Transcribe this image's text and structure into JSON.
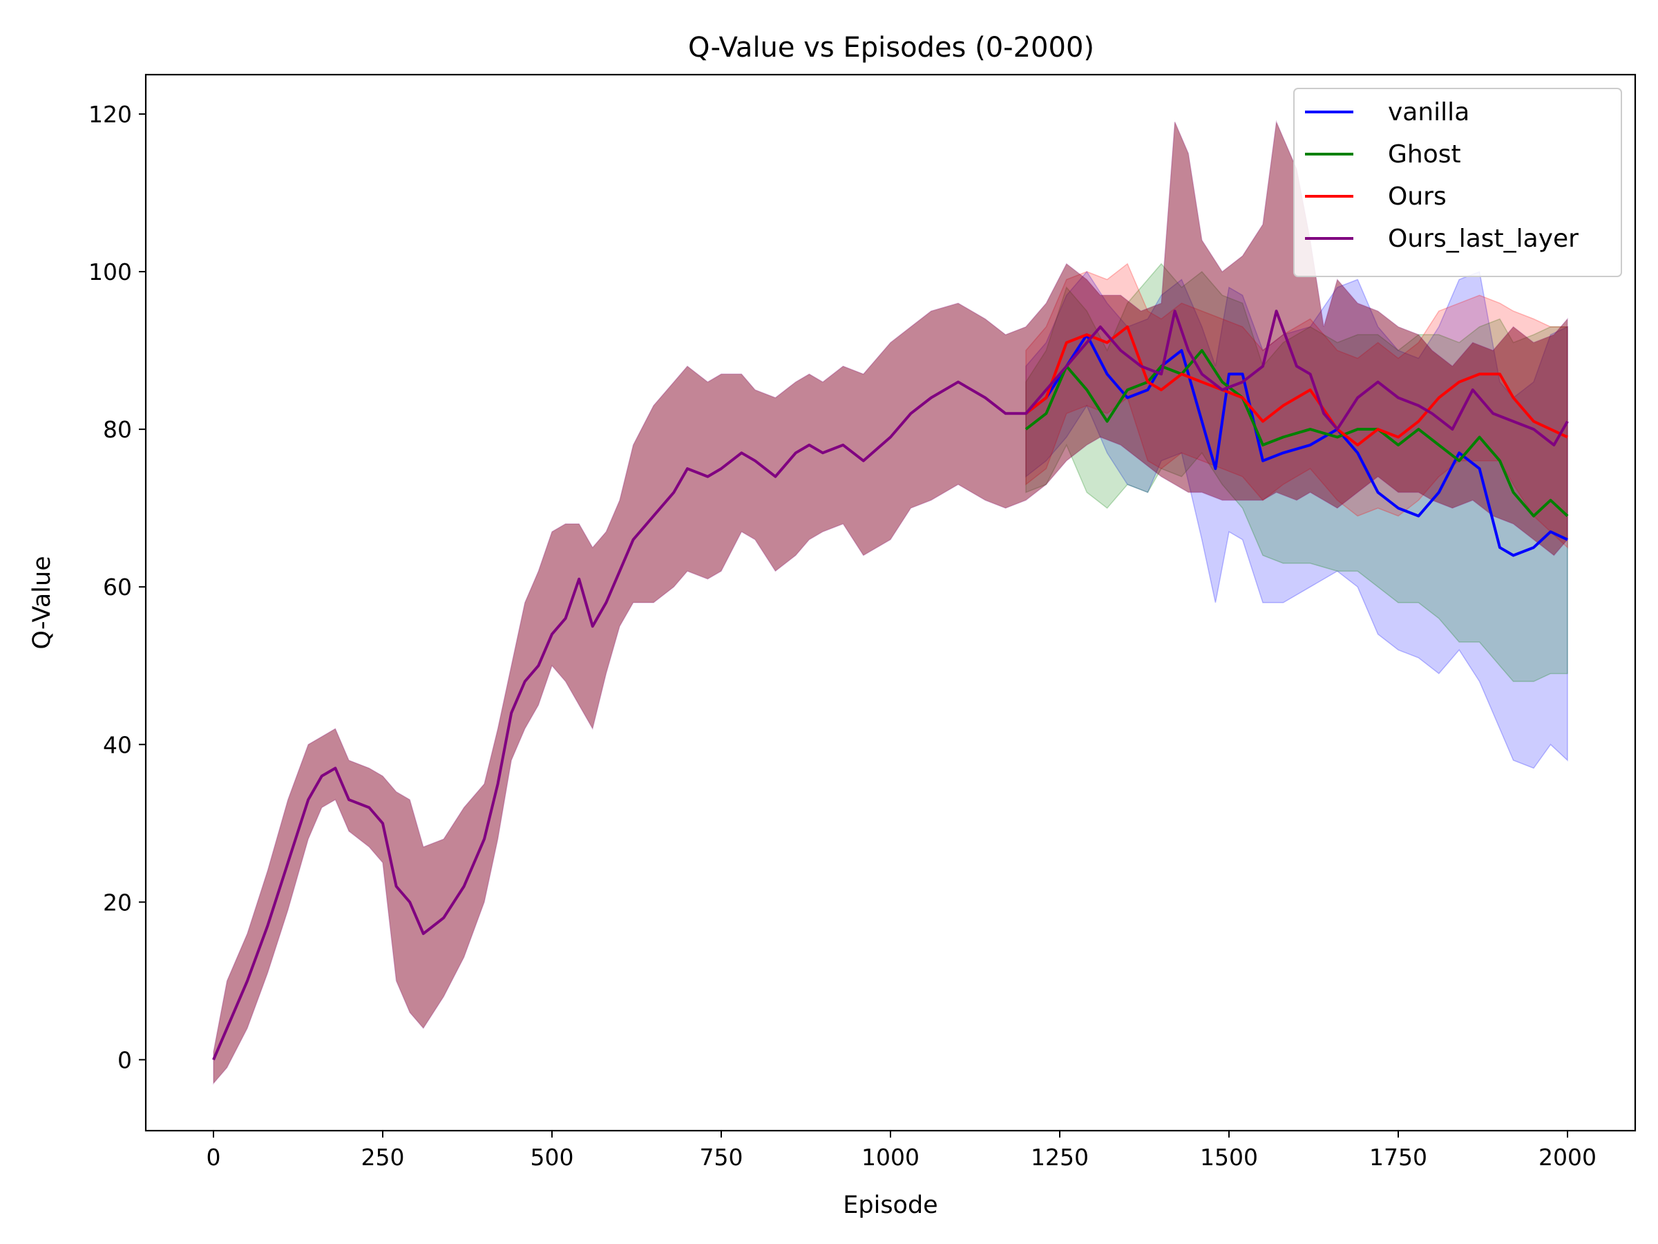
{
  "chart_data": {
    "type": "line",
    "title": "Q-Value vs Episodes (0-2000)",
    "xlabel": "Episode",
    "ylabel": "Q-Value",
    "xlim": [
      -100,
      2100
    ],
    "ylim": [
      -9,
      125
    ],
    "xticks": [
      0,
      250,
      500,
      750,
      1000,
      1250,
      1500,
      1750,
      2000
    ],
    "yticks": [
      0,
      20,
      40,
      60,
      80,
      100,
      120
    ],
    "grid": false,
    "legend_position": "top-right",
    "series": [
      {
        "name": "vanilla",
        "color": "#0000ff",
        "x": [
          1200,
          1230,
          1260,
          1290,
          1320,
          1350,
          1380,
          1400,
          1430,
          1460,
          1480,
          1500,
          1520,
          1550,
          1580,
          1620,
          1660,
          1690,
          1720,
          1750,
          1780,
          1810,
          1840,
          1870,
          1900,
          1920,
          1950,
          1975,
          2000
        ],
        "y": [
          82,
          84,
          88,
          92,
          87,
          84,
          85,
          88,
          90,
          81,
          75,
          87,
          87,
          76,
          77,
          78,
          80,
          77,
          72,
          70,
          69,
          72,
          77,
          75,
          65,
          64,
          65,
          67,
          66
        ],
        "upper": [
          88,
          91,
          97,
          100,
          96,
          93,
          94,
          97,
          99,
          93,
          88,
          98,
          97,
          90,
          92,
          93,
          98,
          99,
          93,
          90,
          89,
          93,
          99,
          100,
          86,
          84,
          86,
          92,
          93
        ],
        "lower": [
          74,
          76,
          79,
          83,
          77,
          73,
          72,
          76,
          77,
          66,
          58,
          67,
          66,
          58,
          58,
          60,
          62,
          60,
          54,
          52,
          51,
          49,
          52,
          48,
          42,
          38,
          37,
          40,
          38
        ]
      },
      {
        "name": "Ghost",
        "color": "#008000",
        "x": [
          1200,
          1230,
          1260,
          1290,
          1320,
          1350,
          1380,
          1400,
          1430,
          1460,
          1490,
          1520,
          1550,
          1580,
          1620,
          1660,
          1690,
          1720,
          1750,
          1780,
          1810,
          1840,
          1870,
          1900,
          1920,
          1950,
          1975,
          2000
        ],
        "y": [
          80,
          82,
          88,
          85,
          81,
          85,
          86,
          88,
          87,
          90,
          86,
          84,
          78,
          79,
          80,
          79,
          80,
          80,
          78,
          80,
          78,
          76,
          79,
          76,
          72,
          69,
          71,
          69
        ],
        "upper": [
          86,
          90,
          98,
          95,
          90,
          96,
          99,
          101,
          98,
          100,
          97,
          96,
          88,
          91,
          93,
          91,
          92,
          92,
          90,
          92,
          92,
          91,
          93,
          94,
          91,
          92,
          93,
          93
        ],
        "lower": [
          72,
          73,
          78,
          72,
          70,
          73,
          72,
          75,
          74,
          77,
          73,
          70,
          64,
          63,
          63,
          62,
          62,
          60,
          58,
          58,
          56,
          53,
          53,
          50,
          48,
          48,
          49,
          49
        ]
      },
      {
        "name": "Ours",
        "color": "#ff0000",
        "x": [
          1200,
          1230,
          1260,
          1290,
          1320,
          1350,
          1380,
          1400,
          1430,
          1460,
          1490,
          1520,
          1550,
          1580,
          1620,
          1660,
          1690,
          1720,
          1750,
          1780,
          1810,
          1840,
          1870,
          1900,
          1920,
          1950,
          1975,
          2000
        ],
        "y": [
          82,
          84,
          91,
          92,
          91,
          93,
          86,
          85,
          87,
          86,
          85,
          84,
          81,
          83,
          85,
          80,
          78,
          80,
          79,
          81,
          84,
          86,
          87,
          87,
          84,
          81,
          80,
          79
        ],
        "upper": [
          90,
          93,
          99,
          100,
          99,
          101,
          95,
          94,
          96,
          95,
          94,
          93,
          90,
          92,
          94,
          90,
          89,
          91,
          89,
          91,
          95,
          96,
          97,
          96,
          95,
          94,
          93,
          93
        ],
        "lower": [
          73,
          75,
          82,
          83,
          82,
          84,
          76,
          75,
          77,
          76,
          75,
          74,
          71,
          73,
          75,
          71,
          69,
          70,
          69,
          71,
          74,
          76,
          76,
          76,
          73,
          69,
          67,
          65
        ]
      },
      {
        "name": "Ours_last_layer",
        "color": "#800080",
        "x": [
          0,
          20,
          50,
          80,
          110,
          140,
          160,
          180,
          200,
          230,
          250,
          270,
          290,
          310,
          340,
          370,
          400,
          420,
          440,
          460,
          480,
          500,
          520,
          540,
          560,
          580,
          600,
          620,
          650,
          680,
          700,
          730,
          750,
          780,
          800,
          830,
          860,
          880,
          900,
          930,
          960,
          1000,
          1030,
          1060,
          1100,
          1140,
          1170,
          1200,
          1230,
          1260,
          1290,
          1310,
          1340,
          1370,
          1400,
          1420,
          1440,
          1460,
          1490,
          1520,
          1550,
          1570,
          1600,
          1620,
          1640,
          1660,
          1690,
          1720,
          1750,
          1780,
          1800,
          1830,
          1860,
          1890,
          1920,
          1950,
          1980,
          2000
        ],
        "y": [
          0,
          4,
          10,
          17,
          25,
          33,
          36,
          37,
          33,
          32,
          30,
          22,
          20,
          16,
          18,
          22,
          28,
          35,
          44,
          48,
          50,
          54,
          56,
          61,
          55,
          58,
          62,
          66,
          69,
          72,
          75,
          74,
          75,
          77,
          76,
          74,
          77,
          78,
          77,
          78,
          76,
          79,
          82,
          84,
          86,
          84,
          82,
          82,
          85,
          88,
          91,
          93,
          90,
          88,
          87,
          95,
          90,
          87,
          85,
          86,
          88,
          95,
          88,
          87,
          82,
          80,
          84,
          86,
          84,
          83,
          82,
          80,
          85,
          82,
          81,
          80,
          78,
          81
        ],
        "upper": [
          1,
          10,
          16,
          24,
          33,
          40,
          41,
          42,
          38,
          37,
          36,
          34,
          33,
          27,
          28,
          32,
          35,
          42,
          50,
          58,
          62,
          67,
          68,
          68,
          65,
          67,
          71,
          78,
          83,
          86,
          88,
          86,
          87,
          87,
          85,
          84,
          86,
          87,
          86,
          88,
          87,
          91,
          93,
          95,
          96,
          94,
          92,
          93,
          96,
          101,
          99,
          97,
          97,
          95,
          96,
          119,
          115,
          104,
          100,
          102,
          106,
          119,
          113,
          104,
          93,
          99,
          96,
          95,
          93,
          92,
          90,
          88,
          91,
          90,
          93,
          91,
          92,
          94
        ],
        "lower": [
          -3,
          -1,
          4,
          11,
          19,
          28,
          32,
          33,
          29,
          27,
          25,
          10,
          6,
          4,
          8,
          13,
          20,
          28,
          38,
          42,
          45,
          50,
          48,
          45,
          42,
          49,
          55,
          58,
          58,
          60,
          62,
          61,
          62,
          67,
          66,
          62,
          64,
          66,
          67,
          68,
          64,
          66,
          70,
          71,
          73,
          71,
          70,
          71,
          73,
          76,
          78,
          79,
          78,
          76,
          74,
          73,
          72,
          72,
          71,
          71,
          71,
          72,
          71,
          72,
          71,
          70,
          72,
          74,
          72,
          72,
          71,
          70,
          71,
          69,
          68,
          66,
          64,
          66
        ]
      }
    ]
  }
}
